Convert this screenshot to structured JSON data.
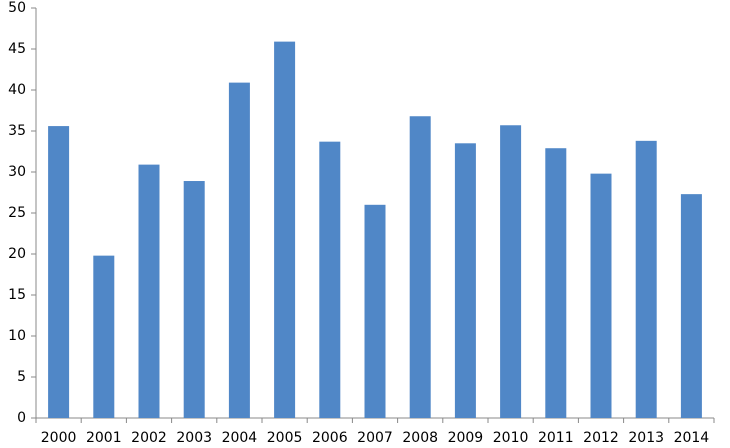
{
  "chart_data": {
    "type": "bar",
    "categories": [
      "2000",
      "2001",
      "2002",
      "2003",
      "2004",
      "2005",
      "2006",
      "2007",
      "2008",
      "2009",
      "2010",
      "2011",
      "2012",
      "2013",
      "2014"
    ],
    "values": [
      35.6,
      19.8,
      30.9,
      28.9,
      40.9,
      45.9,
      33.7,
      26.0,
      36.8,
      33.5,
      35.7,
      32.9,
      29.8,
      33.8,
      27.3
    ],
    "color": "#5087c7",
    "ylim": [
      0,
      50
    ],
    "yticks": [
      0,
      5,
      10,
      15,
      20,
      25,
      30,
      35,
      40,
      45,
      50
    ],
    "grid": false
  }
}
